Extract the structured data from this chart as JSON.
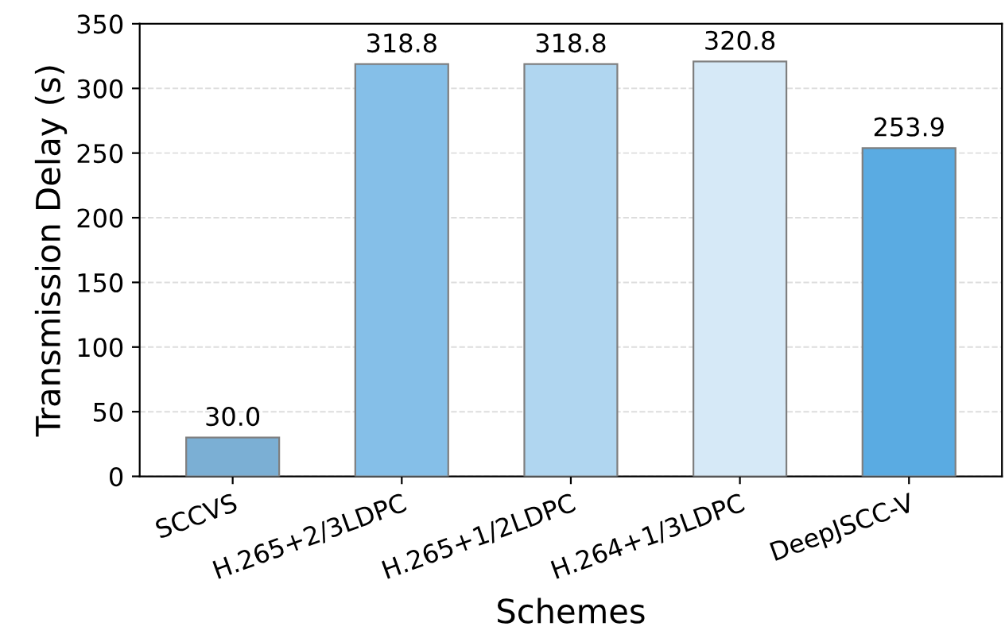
{
  "chart_data": {
    "type": "bar",
    "xlabel": "Schemes",
    "ylabel": "Transmission Delay (s)",
    "categories": [
      "SCCVS",
      "H.265+2/3LDPC",
      "H.265+1/2LDPC",
      "H.264+1/3LDPC",
      "DeepJSCC-V"
    ],
    "values": [
      30.0,
      318.8,
      318.8,
      320.8,
      253.9
    ],
    "colors": [
      "#7bafd4",
      "#85bfe8",
      "#b0d6f0",
      "#d6e9f7",
      "#5aabe2"
    ],
    "value_labels": [
      "30.0",
      "318.8",
      "318.8",
      "320.8",
      "253.9"
    ],
    "ylim": [
      0,
      350
    ],
    "yticks": [
      0,
      50,
      100,
      150,
      200,
      250,
      300,
      350
    ],
    "grid": "y"
  }
}
